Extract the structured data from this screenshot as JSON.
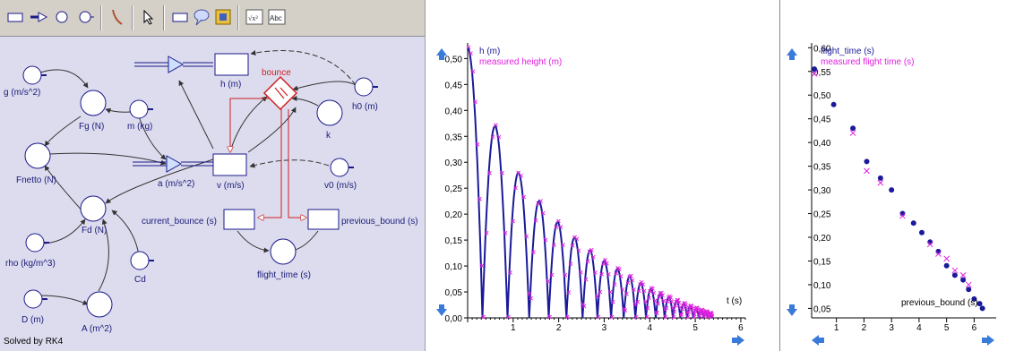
{
  "toolbar": {
    "tools": [
      "stock-tool",
      "flow-tool",
      "auxiliary-tool",
      "constant-tool",
      "connector-tool",
      "pointer-tool",
      "table-tool",
      "comment-tool",
      "frame-tool",
      "formula-tool",
      "text-tool"
    ]
  },
  "model": {
    "labels": {
      "g": "g (m/s^2)",
      "fg": "Fg (N)",
      "m": "m (kg)",
      "h": "h (m)",
      "bounce": "bounce",
      "h0": "h0 (m)",
      "k": "k",
      "fnetto": "Fnetto (N)",
      "a": "a (m/s^2)",
      "v": "v (m/s)",
      "v0": "v0 (m/s)",
      "fd": "Fd (N)",
      "current_bounce": "current_bounce (s)",
      "previous_bound": "previous_bound (s)",
      "rho": "rho (kg/m^3)",
      "cd": "Cd",
      "flight_time": "flight_time (s)",
      "d": "D (m)",
      "area": "A (m^2)"
    },
    "status": "Solved by RK4"
  },
  "graph_height": {
    "chart_data": {
      "type": "line",
      "series": [
        {
          "name": "h (m)",
          "color": "#1a1a9a",
          "style": "line"
        },
        {
          "name": "measured height (m)",
          "color": "#e020e0",
          "style": "cross-markers"
        }
      ],
      "bounce_peaks": [
        [
          0,
          0.52
        ],
        [
          0.65,
          0.37
        ],
        [
          1.21,
          0.28
        ],
        [
          1.7,
          0.225
        ],
        [
          2.14,
          0.185
        ],
        [
          2.55,
          0.155
        ],
        [
          2.93,
          0.13
        ],
        [
          3.28,
          0.11
        ],
        [
          3.6,
          0.095
        ],
        [
          3.9,
          0.08
        ],
        [
          4.18,
          0.067
        ],
        [
          4.44,
          0.056
        ],
        [
          4.68,
          0.047
        ],
        [
          4.9,
          0.04
        ],
        [
          5.1,
          0.033
        ],
        [
          5.29,
          0.027
        ],
        [
          5.47,
          0.022
        ],
        [
          5.64,
          0.018
        ],
        [
          5.8,
          0.014
        ],
        [
          5.95,
          0.011
        ],
        [
          6.05,
          0.008
        ]
      ],
      "xlabel": "t (s)",
      "xlim": [
        0,
        6.1
      ],
      "ylim": [
        0,
        0.53
      ],
      "x_ticks": [
        "1",
        "2",
        "3",
        "4",
        "5",
        "6"
      ],
      "y_ticks": [
        "0,00",
        "0,05",
        "0,10",
        "0,15",
        "0,20",
        "0,25",
        "0,30",
        "0,35",
        "0,40",
        "0,45",
        "0,50"
      ]
    }
  },
  "graph_flight": {
    "chart_data": {
      "type": "scatter",
      "series": [
        {
          "name": "flight_time (s)",
          "color": "#1a1a9a",
          "marker": "dot",
          "points": [
            [
              0.2,
              0.555
            ],
            [
              0.9,
              0.48
            ],
            [
              1.6,
              0.43
            ],
            [
              2.1,
              0.36
            ],
            [
              2.6,
              0.325
            ],
            [
              3.0,
              0.3
            ],
            [
              3.4,
              0.25
            ],
            [
              3.8,
              0.23
            ],
            [
              4.1,
              0.21
            ],
            [
              4.4,
              0.19
            ],
            [
              4.7,
              0.17
            ],
            [
              5.0,
              0.14
            ],
            [
              5.3,
              0.12
            ],
            [
              5.6,
              0.11
            ],
            [
              5.8,
              0.09
            ],
            [
              6.0,
              0.07
            ],
            [
              6.2,
              0.06
            ],
            [
              6.3,
              0.05
            ]
          ]
        },
        {
          "name": "measured flight time (s)",
          "color": "#e020e0",
          "marker": "cross",
          "points": [
            [
              0.2,
              0.545
            ],
            [
              1.6,
              0.42
            ],
            [
              2.1,
              0.34
            ],
            [
              2.6,
              0.315
            ],
            [
              3.4,
              0.245
            ],
            [
              4.4,
              0.185
            ],
            [
              4.7,
              0.165
            ],
            [
              5.0,
              0.155
            ],
            [
              5.3,
              0.13
            ],
            [
              5.6,
              0.12
            ],
            [
              5.8,
              0.1
            ]
          ]
        }
      ],
      "xlabel": "previous_bound (s)",
      "xlim": [
        0.1,
        6.8
      ],
      "ylim": [
        0.03,
        0.61
      ],
      "x_ticks": [
        "1",
        "2",
        "3",
        "4",
        "5",
        "6"
      ],
      "y_ticks": [
        "0,05",
        "0,10",
        "0,15",
        "0,20",
        "0,25",
        "0,30",
        "0,35",
        "0,40",
        "0,45",
        "0,50",
        "0,55",
        "0,60"
      ]
    }
  }
}
